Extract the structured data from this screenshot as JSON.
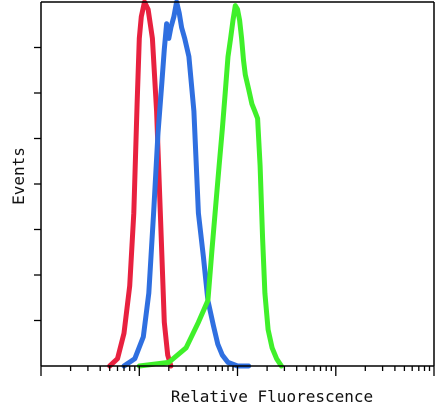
{
  "chart_data": {
    "type": "line",
    "title": "",
    "xlabel": "Relative Fluorescence",
    "ylabel": "Events",
    "x_scale": "log",
    "xlim": [
      1,
      10000
    ],
    "ylim": [
      0,
      100
    ],
    "grid": false,
    "legend": "none",
    "series": [
      {
        "color": "#e8213f",
        "x": [
          5.0,
          6.0,
          7.0,
          8.0,
          8.8,
          9.5,
          10.0,
          10.5,
          11.3,
          12.3,
          13.6,
          15.0,
          16.5,
          18.0,
          19.5,
          21.0
        ],
        "y": [
          0,
          2,
          9,
          22,
          42,
          72,
          90,
          96,
          100,
          98,
          90,
          70,
          40,
          12,
          3,
          0
        ]
      },
      {
        "color": "#2f6fe0",
        "x": [
          7.0,
          9.0,
          11.0,
          12.5,
          14.0,
          15.5,
          17.0,
          18.0,
          19.0,
          20.0,
          21.0,
          22.5,
          24.0,
          25.5,
          27.0,
          29.0,
          32.0,
          36.0,
          40.0,
          45.0,
          50.0,
          57.0,
          63.0,
          70.0,
          80.0,
          100.0,
          130.0
        ],
        "y": [
          0,
          2,
          8,
          20,
          42,
          64,
          78,
          87,
          94,
          90,
          93,
          96,
          100,
          97,
          93,
          90,
          85,
          70,
          42,
          30,
          18,
          11,
          6,
          3,
          1,
          0,
          0
        ]
      },
      {
        "color": "#3ff02a",
        "x": [
          10.0,
          20.0,
          30.0,
          40.0,
          50.0,
          55.0,
          60.0,
          65.0,
          70.0,
          75.0,
          80.0,
          85.0,
          90.0,
          95.0,
          100.0,
          105.0,
          110.0,
          115.0,
          120.0,
          130.0,
          140.0,
          150.0,
          160.0,
          170.0,
          180.0,
          190.0,
          205.0,
          225.0,
          250.0,
          280.0
        ],
        "y": [
          0,
          1,
          5,
          12,
          18,
          32,
          44,
          55,
          65,
          75,
          85,
          90,
          95,
          99,
          98,
          95,
          90,
          84,
          80,
          76,
          72,
          70,
          68,
          55,
          35,
          20,
          10,
          5,
          2,
          0
        ]
      }
    ]
  }
}
